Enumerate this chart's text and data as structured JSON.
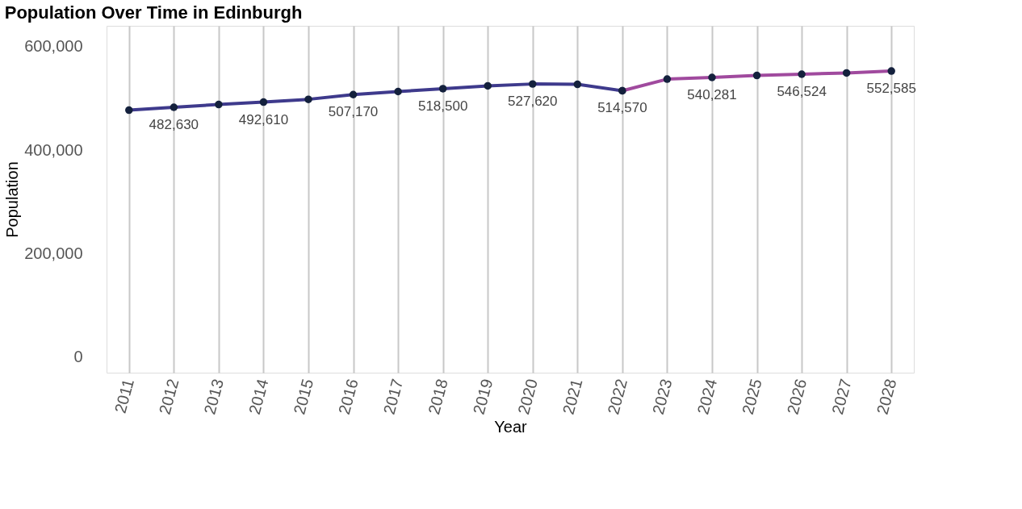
{
  "chart_data": {
    "type": "line",
    "title": "Population Over Time in Edinburgh",
    "xlabel": "Year",
    "ylabel": "Population",
    "categories": [
      "2011",
      "2012",
      "2013",
      "2014",
      "2015",
      "2016",
      "2017",
      "2018",
      "2019",
      "2020",
      "2021",
      "2022",
      "2023",
      "2024",
      "2025",
      "2026",
      "2027",
      "2028"
    ],
    "series": [
      {
        "color": "#3e3a8c",
        "values": [
          477000,
          482630,
          488000,
          492610,
          498000,
          507170,
          513000,
          518500,
          524000,
          527620,
          527000,
          514570,
          null,
          null,
          null,
          null,
          null,
          null
        ],
        "value_labels": [
          null,
          "482,630",
          null,
          "492,610",
          null,
          "507,170",
          null,
          "518,500",
          null,
          "527,620",
          null,
          "514,570",
          null,
          null,
          null,
          null,
          null,
          null
        ]
      },
      {
        "color": "#a04a9e",
        "values": [
          null,
          null,
          null,
          null,
          null,
          null,
          null,
          null,
          null,
          null,
          null,
          514570,
          537000,
          540281,
          544000,
          546524,
          549000,
          552585
        ],
        "value_labels": [
          null,
          null,
          null,
          null,
          null,
          null,
          null,
          null,
          null,
          null,
          null,
          null,
          null,
          "540,281",
          null,
          "546,524",
          null,
          "552,585"
        ]
      }
    ],
    "ylim": [
      -30000,
      640000
    ],
    "yticks": [
      {
        "value": 0,
        "label": "0"
      },
      {
        "value": 200000,
        "label": "200,000"
      },
      {
        "value": 400000,
        "label": "400,000"
      },
      {
        "value": 600000,
        "label": "600,000"
      }
    ],
    "grid": "x",
    "marker": "circle",
    "line_style": "solid"
  }
}
